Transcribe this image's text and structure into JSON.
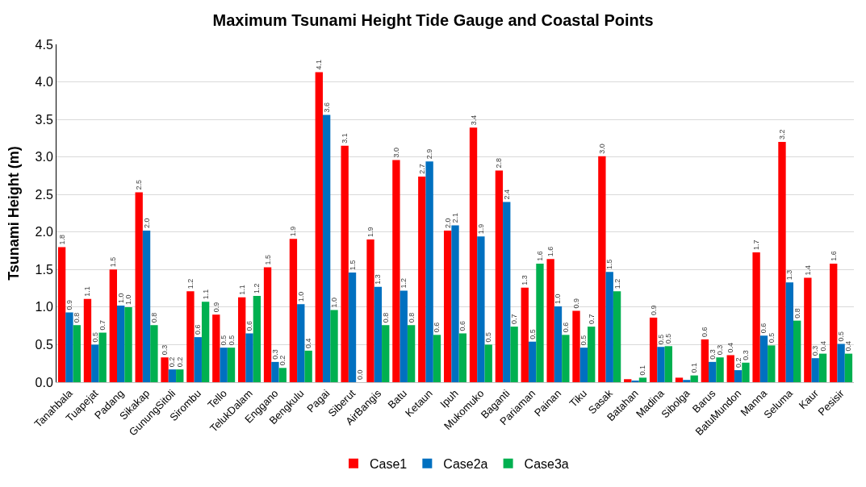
{
  "chart_data": {
    "type": "bar",
    "title": "Maximum Tsunami Height Tide Gauge and Coastal Points",
    "ylabel": "Tsunami Height (m)",
    "categories": [
      "Tanahbala",
      "Tuapejat",
      "Padang",
      "Sikakap",
      "GunungSitoli",
      "Sirombu",
      "Tello",
      "TelukDalam",
      "Enggano",
      "Bengkulu",
      "Pagai",
      "Siberut",
      "AirBangis",
      "Batu",
      "Ketaun",
      "Ipuh",
      "Mukomuko",
      "Baganti",
      "Pariaman",
      "Painan",
      "Tiku",
      "Sasak",
      "Batahan",
      "Madina",
      "Sibolga",
      "Barus",
      "BatuMundon",
      "Manna",
      "Seluma",
      "Kaur",
      "Pesisir"
    ],
    "series": [
      {
        "name": "Case1",
        "color": "#ff0000",
        "values": [
          1.8,
          1.11,
          1.5,
          2.53,
          0.33,
          1.21,
          0.9,
          1.13,
          1.53,
          1.91,
          4.13,
          3.15,
          1.9,
          2.96,
          2.74,
          2.02,
          3.39,
          2.82,
          1.26,
          1.64,
          0.95,
          3.01,
          0.04,
          0.86,
          0.06,
          0.57,
          0.36,
          1.73,
          3.2,
          1.39,
          1.58
        ],
        "value_labels": [
          "1.8",
          "1.1",
          "1.5",
          "2.5",
          "0.3",
          "1.2",
          "0.9",
          "1.1",
          "1.5",
          "1.9",
          "4.1",
          "3.1",
          "1.9",
          "3.0",
          "2.7",
          "2.0",
          "3.4",
          "2.8",
          "1.3",
          "1.6",
          "0.9",
          "3.0",
          null,
          "0.9",
          null,
          "0.6",
          "0.4",
          "1.7",
          "3.2",
          "1.4",
          "1.6"
        ]
      },
      {
        "name": "Case2a",
        "color": "#0070c0",
        "values": [
          0.93,
          0.5,
          1.02,
          2.02,
          0.17,
          0.6,
          0.46,
          0.65,
          0.27,
          1.04,
          3.56,
          1.46,
          1.27,
          1.22,
          2.94,
          2.09,
          1.94,
          2.4,
          0.54,
          1.01,
          0.46,
          1.47,
          0.02,
          0.47,
          0.03,
          0.27,
          0.16,
          0.62,
          1.33,
          0.32,
          0.51
        ],
        "value_labels": [
          "0.9",
          "0.5",
          "1.0",
          "2.0",
          "0.2",
          "0.6",
          "0.5",
          "0.6",
          "0.3",
          "1.0",
          "3.6",
          "1.5",
          "1.3",
          "1.2",
          "2.9",
          "2.1",
          "1.9",
          "2.4",
          "0.5",
          "1.0",
          "0.5",
          "1.5",
          null,
          "0.5",
          null,
          "0.3",
          "0.2",
          "0.6",
          "1.3",
          "0.3",
          "0.5"
        ]
      },
      {
        "name": "Case3a",
        "color": "#00b050",
        "values": [
          0.76,
          0.66,
          1.0,
          0.76,
          0.17,
          1.07,
          0.46,
          1.15,
          0.19,
          0.42,
          0.96,
          0.0,
          0.76,
          0.76,
          0.63,
          0.65,
          0.5,
          0.74,
          1.58,
          0.63,
          0.74,
          1.21,
          0.06,
          0.48,
          0.09,
          0.33,
          0.26,
          0.49,
          0.82,
          0.38,
          0.38
        ],
        "value_labels": [
          "0.8",
          "0.7",
          "1.0",
          "0.8",
          "0.2",
          "1.1",
          "0.5",
          "1.2",
          "0.2",
          "0.4",
          "1.0",
          "0.0",
          "0.8",
          "0.8",
          "0.6",
          "0.6",
          "0.5",
          "0.7",
          "1.6",
          "0.6",
          "0.7",
          "1.2",
          "0.1",
          "0.5",
          "0.1",
          "0.3",
          "0.3",
          "0.5",
          "0.8",
          "0.4",
          "0.4"
        ]
      }
    ],
    "ylim": [
      0,
      4.5
    ],
    "yticks": [
      {
        "value": 0,
        "label": "0.0"
      },
      {
        "value": 0.5,
        "label": "0.5"
      },
      {
        "value": 1,
        "label": "1.0"
      },
      {
        "value": 1.5,
        "label": "1.5"
      },
      {
        "value": 2,
        "label": "2.0"
      },
      {
        "value": 2.5,
        "label": "2.5"
      },
      {
        "value": 3,
        "label": "3.0"
      },
      {
        "value": 3.5,
        "label": "3.5"
      },
      {
        "value": 4,
        "label": "4.0"
      },
      {
        "value": 4.5,
        "label": "4.5"
      }
    ],
    "grid": "y",
    "legend": "bottom"
  }
}
